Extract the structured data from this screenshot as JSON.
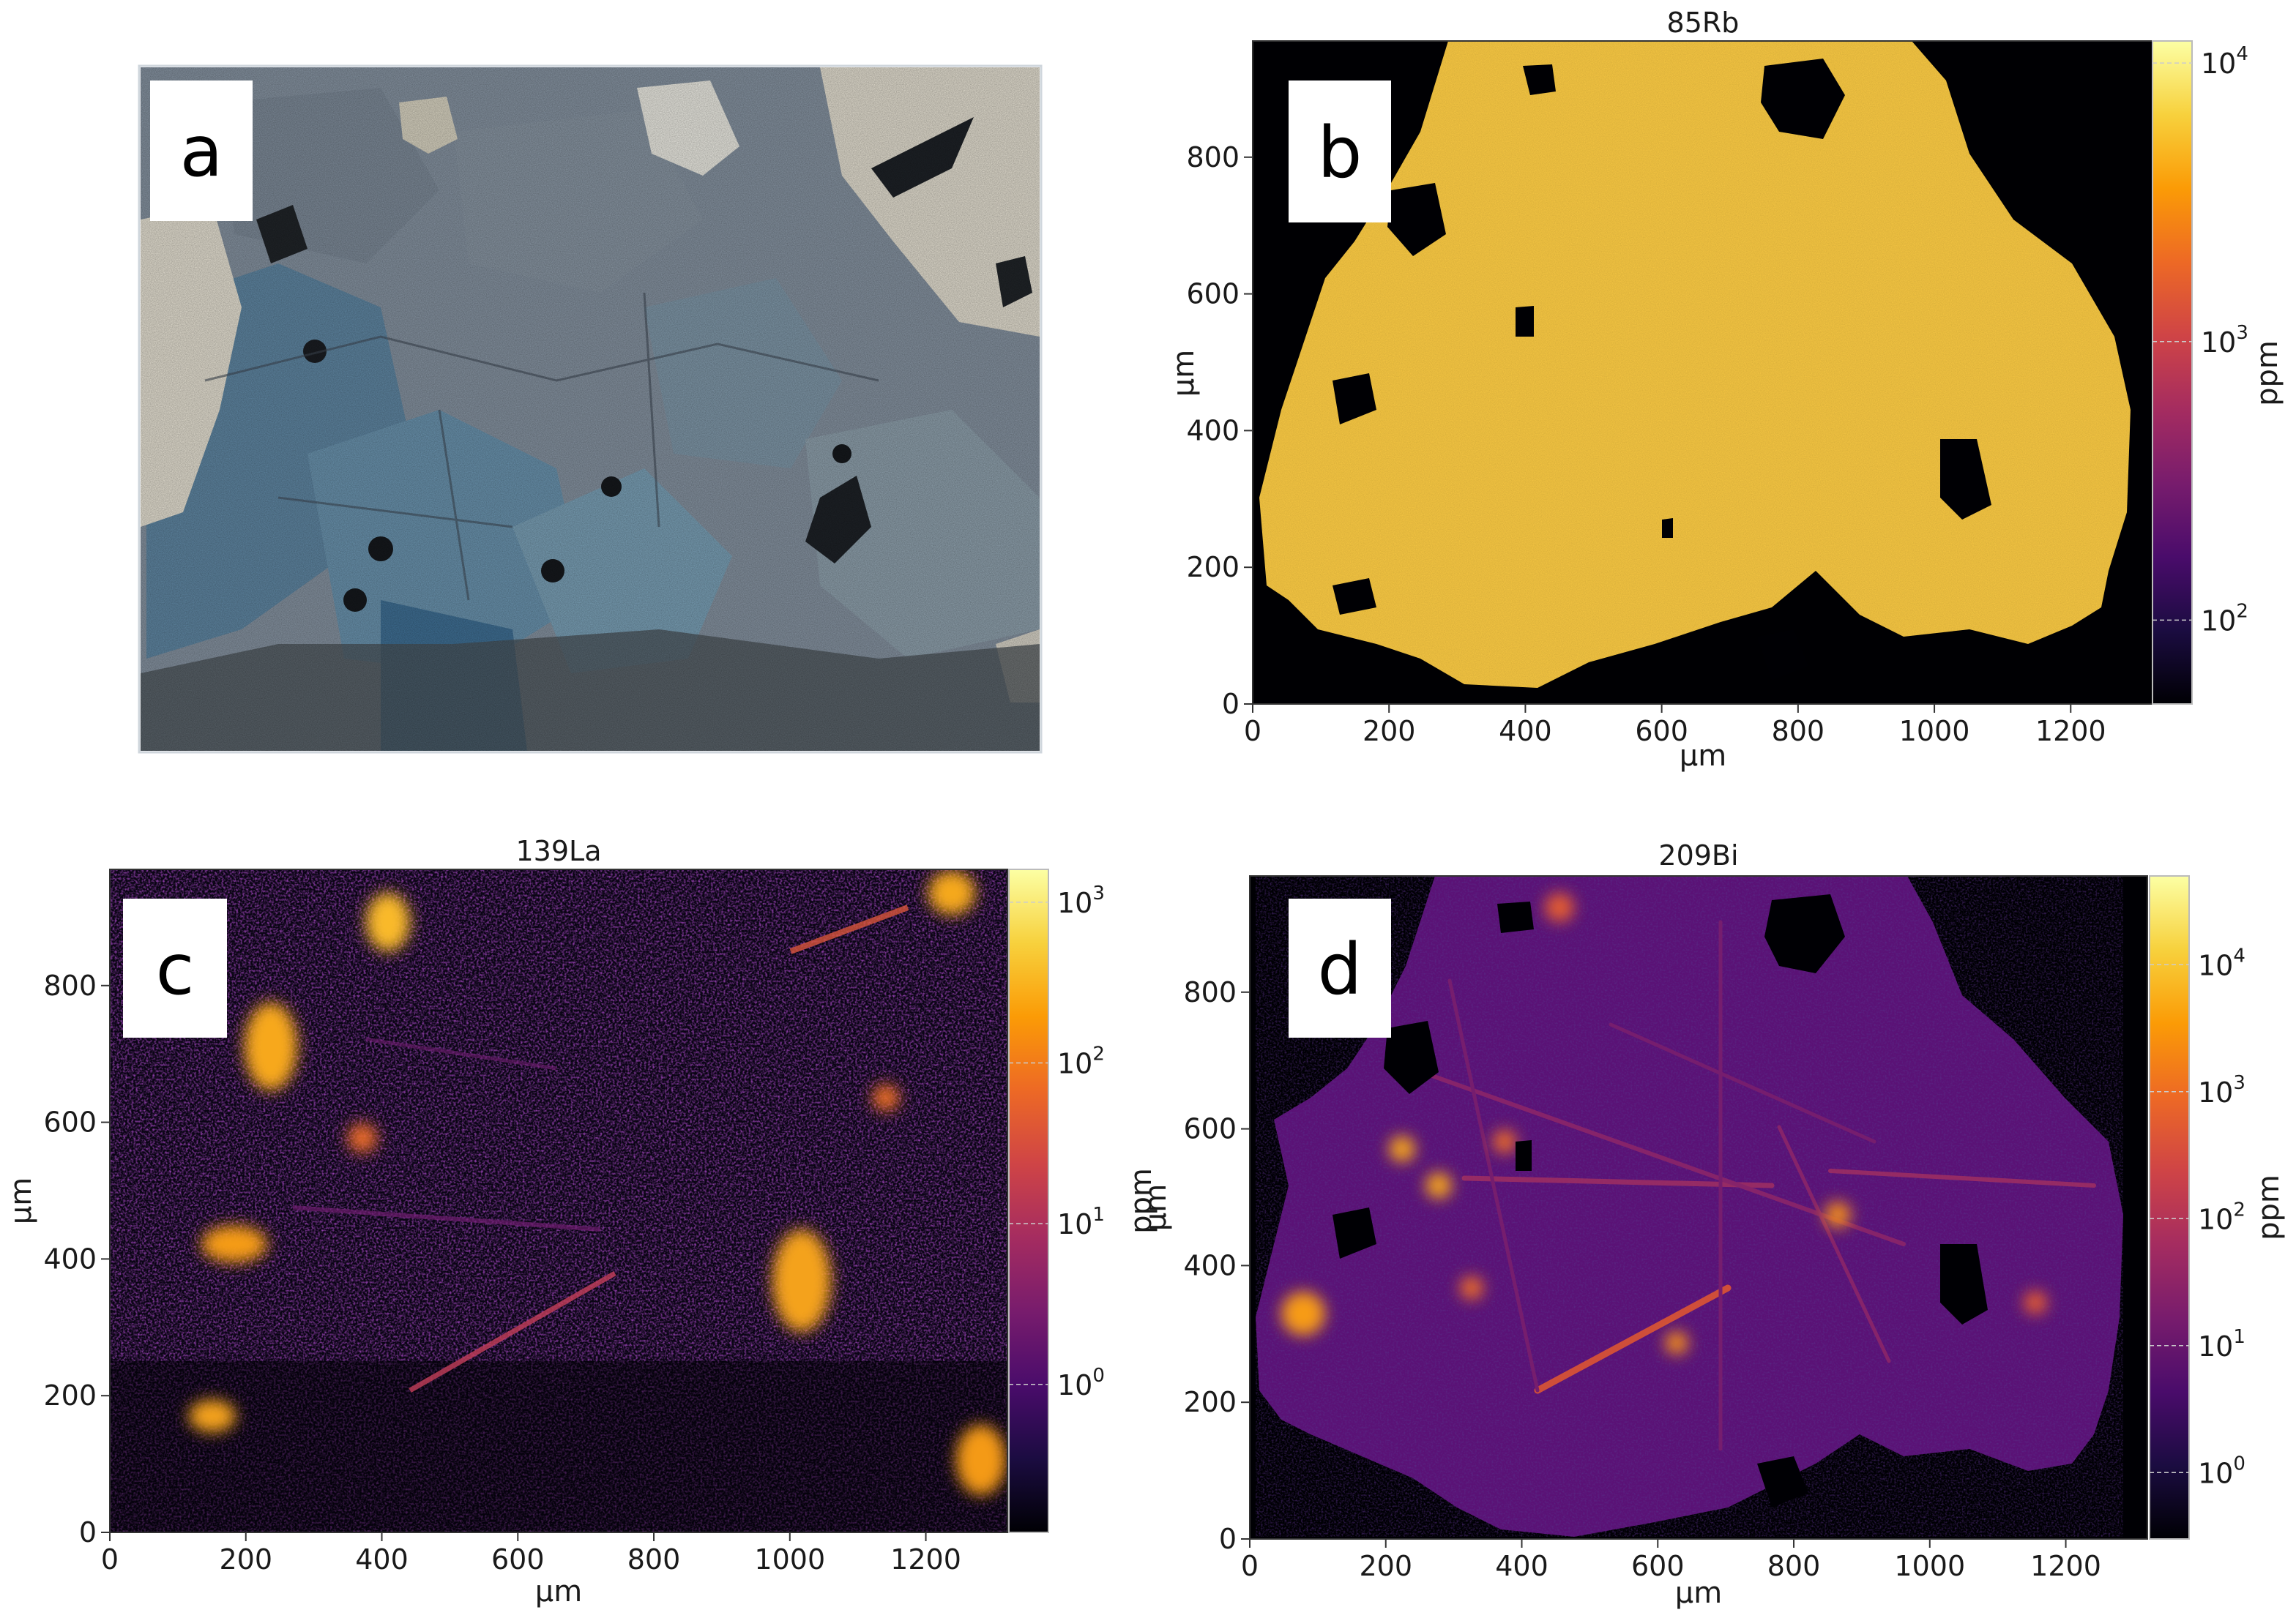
{
  "chart_data": [
    {
      "id": "a",
      "type": "image",
      "panel_label": "a",
      "title": "",
      "colors": {
        "gray": "#8f9aa6",
        "blue": "#5f8aa8",
        "light": "#e4e0d4",
        "dark": "#2b2f34"
      }
    },
    {
      "id": "b",
      "type": "heatmap",
      "panel_label": "b",
      "title": "85Rb",
      "xlabel": "µm",
      "ylabel": "µm",
      "colorbar_label": "ppm",
      "xlim": [
        0,
        1320
      ],
      "ylim": [
        0,
        970
      ],
      "xticks": [
        0,
        200,
        400,
        600,
        800,
        1000,
        1200
      ],
      "yticks": [
        0,
        200,
        400,
        600,
        800
      ],
      "cbar_scale": "log",
      "cbar_range": [
        50,
        12000
      ],
      "cbar_ticks": [
        {
          "value": 100,
          "base": "10",
          "exp": "2"
        },
        {
          "value": 1000,
          "base": "10",
          "exp": "3"
        },
        {
          "value": 10000,
          "base": "10",
          "exp": "4"
        }
      ]
    },
    {
      "id": "c",
      "type": "heatmap",
      "panel_label": "c",
      "title": "139La",
      "xlabel": "µm",
      "ylabel": "µm",
      "colorbar_label": "ppm",
      "xlim": [
        0,
        1320
      ],
      "ylim": [
        0,
        970
      ],
      "xticks": [
        0,
        200,
        400,
        600,
        800,
        1000,
        1200
      ],
      "yticks": [
        0,
        200,
        400,
        600,
        800
      ],
      "cbar_scale": "log",
      "cbar_range": [
        0.12,
        1600
      ],
      "cbar_ticks": [
        {
          "value": 1,
          "base": "10",
          "exp": "0"
        },
        {
          "value": 10,
          "base": "10",
          "exp": "1"
        },
        {
          "value": 100,
          "base": "10",
          "exp": "2"
        },
        {
          "value": 1000,
          "base": "10",
          "exp": "3"
        }
      ]
    },
    {
      "id": "d",
      "type": "heatmap",
      "panel_label": "d",
      "title": "209Bi",
      "xlabel": "µm",
      "ylabel": "µm",
      "colorbar_label": "ppm",
      "xlim": [
        0,
        1320
      ],
      "ylim": [
        0,
        970
      ],
      "xticks": [
        0,
        200,
        400,
        600,
        800,
        1000,
        1200
      ],
      "yticks": [
        0,
        200,
        400,
        600,
        800
      ],
      "cbar_scale": "log",
      "cbar_range": [
        0.3,
        50000
      ],
      "cbar_ticks": [
        {
          "value": 1,
          "base": "10",
          "exp": "0"
        },
        {
          "value": 10,
          "base": "10",
          "exp": "1"
        },
        {
          "value": 100,
          "base": "10",
          "exp": "2"
        },
        {
          "value": 1000,
          "base": "10",
          "exp": "3"
        },
        {
          "value": 10000,
          "base": "10",
          "exp": "4"
        }
      ]
    }
  ],
  "colormap": "inferno",
  "colormap_stops": [
    "#000004",
    "#1b0c41",
    "#4a0c6b",
    "#781c6d",
    "#a52c60",
    "#cf4446",
    "#ed6925",
    "#fb9b06",
    "#f7d13d",
    "#fcffa4"
  ]
}
